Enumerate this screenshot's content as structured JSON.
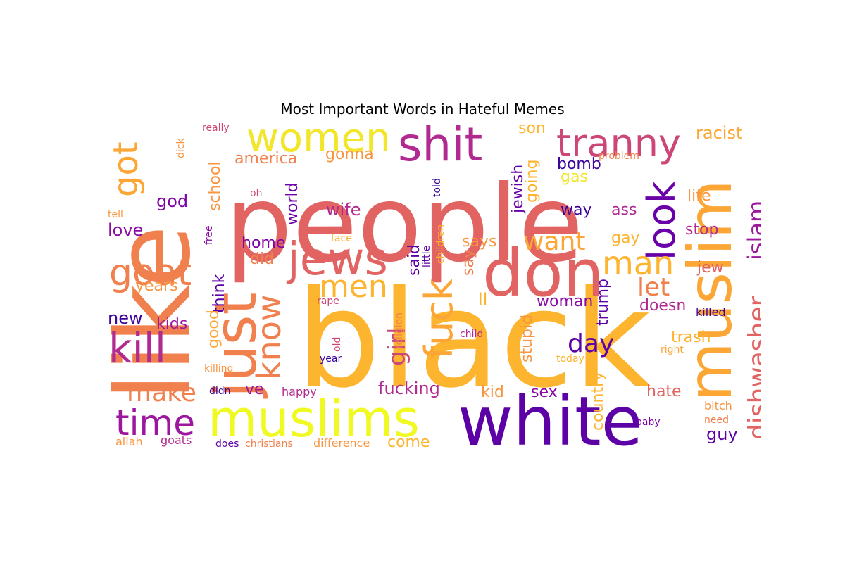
{
  "chart_data": {
    "type": "wordcloud",
    "title": "Most Important Words in Hateful Memes",
    "palette": "plasma",
    "background": "#ffffff",
    "words": [
      {
        "text": "people",
        "weight": 1.0,
        "color": "#e16462"
      },
      {
        "text": "black",
        "weight": 0.95,
        "color": "#fdb42f"
      },
      {
        "text": "white",
        "weight": 0.62,
        "color": "#5c01a6"
      },
      {
        "text": "like",
        "weight": 0.8,
        "color": "#f0804e"
      },
      {
        "text": "muslims",
        "weight": 0.45,
        "color": "#f0f921"
      },
      {
        "text": "muslim",
        "weight": 0.5,
        "color": "#fca636"
      },
      {
        "text": "don",
        "weight": 0.5,
        "color": "#e16462"
      },
      {
        "text": "just",
        "weight": 0.45,
        "color": "#f0804e"
      },
      {
        "text": "shit",
        "weight": 0.35,
        "color": "#b12a90"
      },
      {
        "text": "women",
        "weight": 0.3,
        "color": "#f2e62a"
      },
      {
        "text": "tranny",
        "weight": 0.3,
        "color": "#cc4778"
      },
      {
        "text": "jews",
        "weight": 0.3,
        "color": "#e16462"
      },
      {
        "text": "kill",
        "weight": 0.28,
        "color": "#b12a90"
      },
      {
        "text": "goat",
        "weight": 0.26,
        "color": "#f0804e"
      },
      {
        "text": "look",
        "weight": 0.3,
        "color": "#6a00a8"
      },
      {
        "text": "fuck",
        "weight": 0.28,
        "color": "#fca636"
      },
      {
        "text": "know",
        "weight": 0.25,
        "color": "#f0804e"
      },
      {
        "text": "men",
        "weight": 0.24,
        "color": "#fdb42f"
      },
      {
        "text": "man",
        "weight": 0.24,
        "color": "#fdb42f"
      },
      {
        "text": "time",
        "weight": 0.24,
        "color": "#9c179e"
      },
      {
        "text": "got",
        "weight": 0.22,
        "color": "#fca636"
      },
      {
        "text": "dishwasher",
        "weight": 0.2,
        "color": "#e16462"
      },
      {
        "text": "islam",
        "weight": 0.18,
        "color": "#9c179e"
      },
      {
        "text": "make",
        "weight": 0.18,
        "color": "#f0804e"
      },
      {
        "text": "girl",
        "weight": 0.17,
        "color": "#cc4778"
      },
      {
        "text": "want",
        "weight": 0.17,
        "color": "#fca636"
      },
      {
        "text": "day",
        "weight": 0.17,
        "color": "#5c01a6"
      },
      {
        "text": "let",
        "weight": 0.16,
        "color": "#f0804e"
      },
      {
        "text": "racist",
        "weight": 0.12,
        "color": "#fca636"
      },
      {
        "text": "son",
        "weight": 0.1,
        "color": "#fdb42f"
      },
      {
        "text": "america",
        "weight": 0.1,
        "color": "#f0804e"
      },
      {
        "text": "gonna",
        "weight": 0.1,
        "color": "#f89540"
      },
      {
        "text": "school",
        "weight": 0.1,
        "color": "#f89540"
      },
      {
        "text": "world",
        "weight": 0.1,
        "color": "#6a00a8"
      },
      {
        "text": "god",
        "weight": 0.1,
        "color": "#7e03a8"
      },
      {
        "text": "love",
        "weight": 0.1,
        "color": "#8b0aa5"
      },
      {
        "text": "wife",
        "weight": 0.1,
        "color": "#b12a90"
      },
      {
        "text": "home",
        "weight": 0.1,
        "color": "#7e03a8"
      },
      {
        "text": "did",
        "weight": 0.1,
        "color": "#f0804e"
      },
      {
        "text": "think",
        "weight": 0.1,
        "color": "#5c01a6"
      },
      {
        "text": "years",
        "weight": 0.1,
        "color": "#f89540"
      },
      {
        "text": "new",
        "weight": 0.1,
        "color": "#3b049a"
      },
      {
        "text": "kids",
        "weight": 0.1,
        "color": "#9c179e"
      },
      {
        "text": "good",
        "weight": 0.09,
        "color": "#fca636"
      },
      {
        "text": "jewish",
        "weight": 0.1,
        "color": "#6a00a8"
      },
      {
        "text": "going",
        "weight": 0.1,
        "color": "#fdb42f"
      },
      {
        "text": "gas",
        "weight": 0.1,
        "color": "#f2e62a"
      },
      {
        "text": "bomb",
        "weight": 0.1,
        "color": "#3b049a"
      },
      {
        "text": "way",
        "weight": 0.1,
        "color": "#3b049a"
      },
      {
        "text": "ass",
        "weight": 0.1,
        "color": "#b12a90"
      },
      {
        "text": "life",
        "weight": 0.1,
        "color": "#f89540"
      },
      {
        "text": "stop",
        "weight": 0.1,
        "color": "#b12a90"
      },
      {
        "text": "gay",
        "weight": 0.1,
        "color": "#fdb42f"
      },
      {
        "text": "jew",
        "weight": 0.1,
        "color": "#e16462"
      },
      {
        "text": "says",
        "weight": 0.1,
        "color": "#f89540"
      },
      {
        "text": "said",
        "weight": 0.1,
        "color": "#5c01a6"
      },
      {
        "text": "say",
        "weight": 0.1,
        "color": "#f0804e"
      },
      {
        "text": "ll",
        "weight": 0.1,
        "color": "#fdb42f"
      },
      {
        "text": "trump",
        "weight": 0.1,
        "color": "#5c01a6"
      },
      {
        "text": "woman",
        "weight": 0.1,
        "color": "#8b0aa5"
      },
      {
        "text": "doesn",
        "weight": 0.1,
        "color": "#b12a90"
      },
      {
        "text": "killed",
        "weight": 0.08,
        "color": "#3b049a"
      },
      {
        "text": "trash",
        "weight": 0.1,
        "color": "#fdb42f"
      },
      {
        "text": "stupid",
        "weight": 0.1,
        "color": "#f89540"
      },
      {
        "text": "country",
        "weight": 0.1,
        "color": "#fdb42f"
      },
      {
        "text": "hate",
        "weight": 0.1,
        "color": "#e16462"
      },
      {
        "text": "fucking",
        "weight": 0.1,
        "color": "#b12a90"
      },
      {
        "text": "kid",
        "weight": 0.1,
        "color": "#f89540"
      },
      {
        "text": "sex",
        "weight": 0.1,
        "color": "#8b0aa5"
      },
      {
        "text": "guy",
        "weight": 0.1,
        "color": "#5c01a6"
      },
      {
        "text": "ve",
        "weight": 0.1,
        "color": "#9c179e"
      },
      {
        "text": "come",
        "weight": 0.1,
        "color": "#fdb42f"
      },
      {
        "text": "really",
        "weight": 0.06,
        "color": "#cc4778"
      },
      {
        "text": "dick",
        "weight": 0.06,
        "color": "#f89540"
      },
      {
        "text": "problem",
        "weight": 0.06,
        "color": "#f0804e"
      },
      {
        "text": "oh",
        "weight": 0.06,
        "color": "#cc4778"
      },
      {
        "text": "told",
        "weight": 0.06,
        "color": "#3b049a"
      },
      {
        "text": "tell",
        "weight": 0.06,
        "color": "#f89540"
      },
      {
        "text": "free",
        "weight": 0.06,
        "color": "#8b0aa5"
      },
      {
        "text": "face",
        "weight": 0.06,
        "color": "#fdb42f"
      },
      {
        "text": "children",
        "weight": 0.06,
        "color": "#fdb42f"
      },
      {
        "text": "little",
        "weight": 0.06,
        "color": "#5c01a6"
      },
      {
        "text": "rape",
        "weight": 0.06,
        "color": "#cc4778"
      },
      {
        "text": "religion",
        "weight": 0.06,
        "color": "#f0804e"
      },
      {
        "text": "child",
        "weight": 0.06,
        "color": "#b12a90"
      },
      {
        "text": "right",
        "weight": 0.06,
        "color": "#fca636"
      },
      {
        "text": "today",
        "weight": 0.06,
        "color": "#fdb42f"
      },
      {
        "text": "old",
        "weight": 0.06,
        "color": "#cc4778"
      },
      {
        "text": "year",
        "weight": 0.06,
        "color": "#3b049a"
      },
      {
        "text": "killing",
        "weight": 0.06,
        "color": "#f89540"
      },
      {
        "text": "didn",
        "weight": 0.06,
        "color": "#3b049a"
      },
      {
        "text": "happy",
        "weight": 0.06,
        "color": "#b12a90"
      },
      {
        "text": "baby",
        "weight": 0.06,
        "color": "#7e03a8"
      },
      {
        "text": "bitch",
        "weight": 0.06,
        "color": "#f89540"
      },
      {
        "text": "need",
        "weight": 0.06,
        "color": "#f0804e"
      },
      {
        "text": "allah",
        "weight": 0.06,
        "color": "#f89540"
      },
      {
        "text": "goats",
        "weight": 0.06,
        "color": "#b12a90"
      },
      {
        "text": "does",
        "weight": 0.06,
        "color": "#5c01a6"
      },
      {
        "text": "christians",
        "weight": 0.06,
        "color": "#f0804e"
      },
      {
        "text": "difference",
        "weight": 0.06,
        "color": "#f89540"
      }
    ]
  }
}
